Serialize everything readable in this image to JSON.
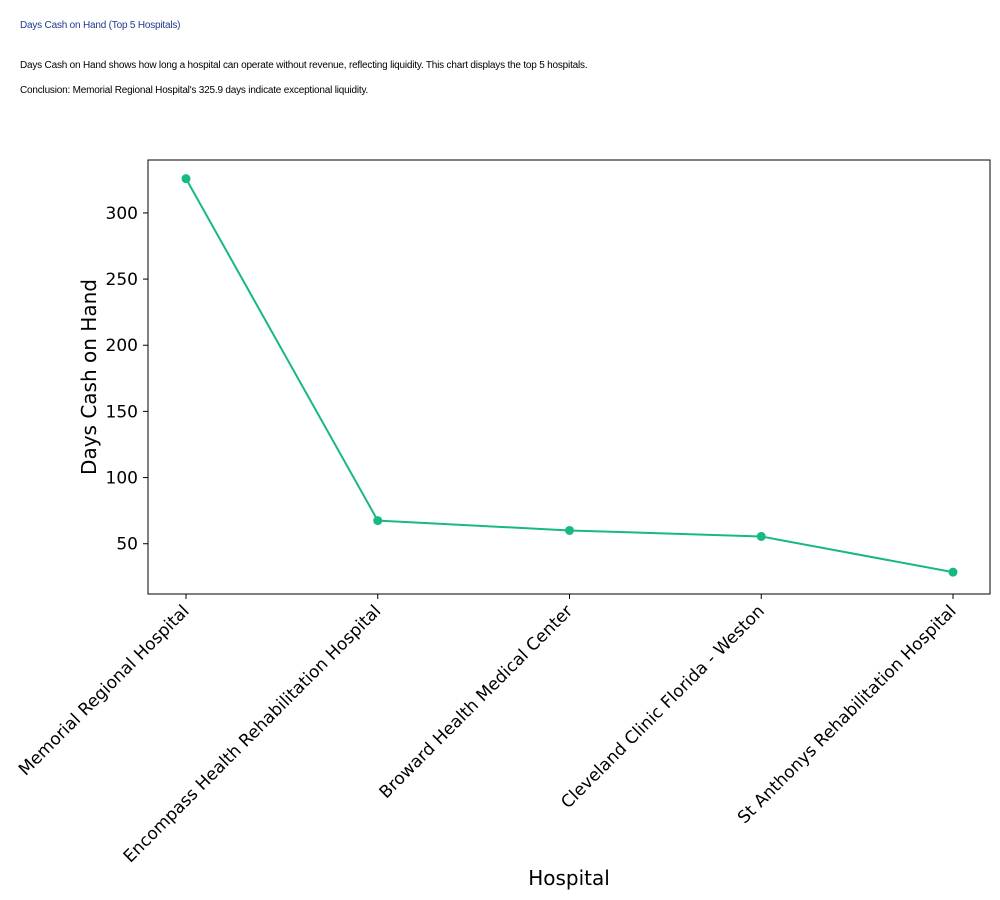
{
  "page": {
    "title": "Days Cash on Hand (Top 5 Hospitals)",
    "description": "Days Cash on Hand shows how long a hospital can operate without revenue, reflecting liquidity. This chart displays the top 5 hospitals.",
    "conclusion": "Conclusion: Memorial Regional Hospital's 325.9 days indicate exceptional liquidity."
  },
  "chart_data": {
    "type": "line",
    "categories": [
      "Memorial Regional Hospital",
      "Encompass Health Rehabilitation Hospital",
      "Broward Health Medical Center",
      "Cleveland Clinic Florida - Weston",
      "St Anthonys Rehabilitation Hospital"
    ],
    "values": [
      325.9,
      67.5,
      60.0,
      55.5,
      28.5
    ],
    "xlabel": "Hospital",
    "ylabel": "Days Cash on Hand",
    "yticks": [
      50,
      100,
      150,
      200,
      250,
      300
    ],
    "ylim": [
      12,
      340
    ],
    "line_color": "#17b97f",
    "grid": false,
    "marker": "circle"
  }
}
